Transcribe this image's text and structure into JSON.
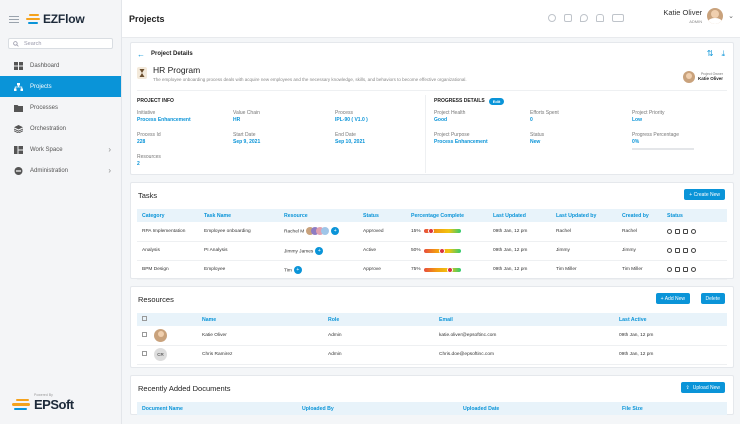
{
  "app": {
    "brand": "EZFlow",
    "powered_by": "Powered By",
    "powered_brand": "EPSoft"
  },
  "sidebar": {
    "search_placeholder": "Search",
    "items": [
      {
        "label": "Dashboard",
        "icon": "grid-icon",
        "active": false
      },
      {
        "label": "Projects",
        "icon": "hierarchy-icon",
        "active": true
      },
      {
        "label": "Processes",
        "icon": "folder-icon",
        "active": false
      },
      {
        "label": "Orchestration",
        "icon": "layers-icon",
        "active": false
      },
      {
        "label": "Work Space",
        "icon": "workspace-icon",
        "active": false,
        "has_submenu": true
      },
      {
        "label": "Administration",
        "icon": "admin-icon",
        "active": false,
        "has_submenu": true
      }
    ]
  },
  "header": {
    "title": "Projects",
    "user_name": "Katie Oliver",
    "user_role": "ADMIN"
  },
  "project": {
    "back_label": "Project Details",
    "name": "HR Program",
    "description": "The employee onboarding process deals with acquire new employees and the necessary knowledge, skills, and behaviors to become effective organizational.",
    "owner_label": "Project Owner",
    "owner_name": "Katie Oliver"
  },
  "project_info": {
    "title": "PROJECT INFO",
    "fields": [
      {
        "label": "Initiative",
        "value": "Process Enhancement"
      },
      {
        "label": "Value Chain",
        "value": "HR"
      },
      {
        "label": "Process",
        "value": "IPL-90 ( V1.0 )"
      },
      {
        "label": "Process Id",
        "value": "228"
      },
      {
        "label": "Start Date",
        "value": "Sep 9, 2021"
      },
      {
        "label": "End Date",
        "value": "Sep 10, 2021"
      },
      {
        "label": "Resources",
        "value": "2"
      }
    ]
  },
  "progress_details": {
    "title": "PROGRESS DETAILS",
    "edit_label": "Edit",
    "fields": [
      {
        "label": "Project Health",
        "value": "Good"
      },
      {
        "label": "Efforts Spent",
        "value": "0"
      },
      {
        "label": "Project Priority",
        "value": "Low"
      },
      {
        "label": "Project Purpose",
        "value": "Process Enhancement"
      },
      {
        "label": "Status",
        "value": "New"
      },
      {
        "label": "Progress Percentage",
        "value": "0%"
      }
    ],
    "progress_fraction": 0
  },
  "tasks": {
    "title": "Tasks",
    "create_label": "+ Create New",
    "columns": [
      "Category",
      "Task Name",
      "Resource",
      "Status",
      "Percentage Complete",
      "Last Updated",
      "Last Updated by",
      "Created by",
      "Status"
    ],
    "rows": [
      {
        "category": "RPA Implementation",
        "task": "Employee onboarding",
        "resource": "Rachel M",
        "resource_extra": "+",
        "status": "Approved",
        "pct": "15%",
        "pct_value": 15,
        "updated": "09th Jan, 12 pm",
        "updated_by": "Rachel",
        "created_by": "Rachel"
      },
      {
        "category": "Analysis",
        "task": "PI Analysis",
        "resource": "Jimmy James",
        "resource_extra": "+",
        "status": "Active",
        "pct": "50%",
        "pct_value": 50,
        "updated": "09th Jan, 12 pm",
        "updated_by": "Jimmy",
        "created_by": "Jimmy"
      },
      {
        "category": "BPM Design",
        "task": "Employee",
        "resource": "Tim",
        "resource_extra": "+",
        "status": "Approve",
        "pct": "75%",
        "pct_value": 75,
        "updated": "09th Jan, 12 pm",
        "updated_by": "Tim Miller",
        "created_by": "Tim Miller"
      }
    ]
  },
  "resources": {
    "title": "Resources",
    "add_label": "+ Add New",
    "delete_label": "Delete",
    "columns": [
      "Name",
      "Role",
      "Email",
      "Last Active"
    ],
    "rows": [
      {
        "initials": "",
        "name": "Katie Oliver",
        "role": "Admin",
        "email": "katie.oliver@epsoftinc.com",
        "last_active": "09th Jan, 12 pm"
      },
      {
        "initials": "CR",
        "name": "Chris Ramirez",
        "role": "Admin",
        "email": "Chris.doe@epsoftinc.com",
        "last_active": "09th Jan, 12 pm"
      }
    ]
  },
  "documents": {
    "title": "Recently Added Documents",
    "upload_label": "Upload New",
    "columns": [
      "Document Name",
      "Uploaded By",
      "Uploaded Date",
      "File Size"
    ]
  },
  "colors": {
    "accent": "#0a94d8",
    "sidebar_active": "#0a94d8"
  }
}
